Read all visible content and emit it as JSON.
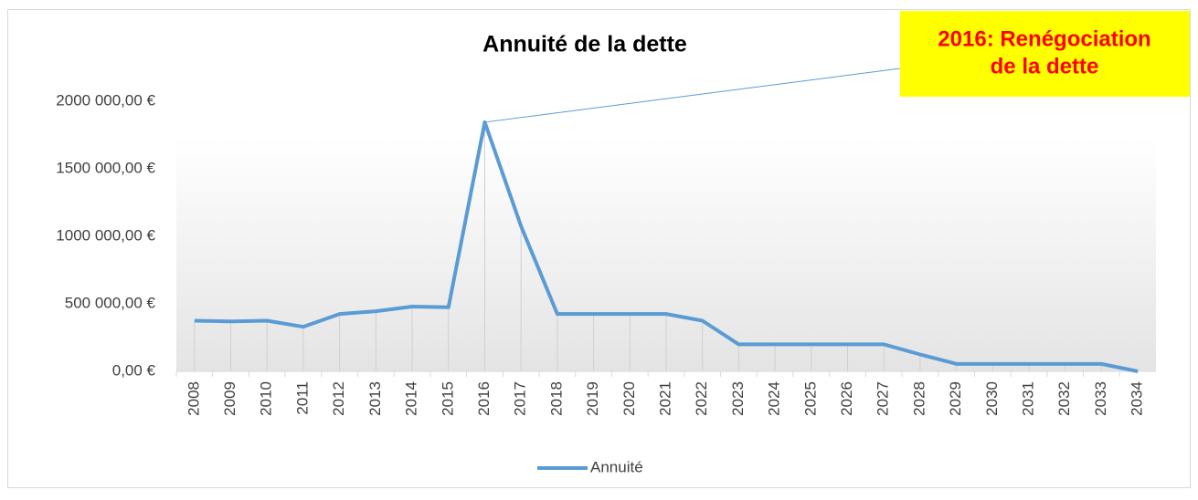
{
  "chart_data": {
    "type": "line",
    "title": "Annuité de la dette",
    "categories": [
      "2008",
      "2009",
      "2010",
      "2011",
      "2012",
      "2013",
      "2014",
      "2015",
      "2016",
      "2017",
      "2018",
      "2019",
      "2020",
      "2021",
      "2022",
      "2023",
      "2024",
      "2025",
      "2026",
      "2027",
      "2028",
      "2029",
      "2030",
      "2031",
      "2032",
      "2033",
      "2034"
    ],
    "series": [
      {
        "name": "Annuité",
        "color": "#5b9bd5",
        "values": [
          375000,
          370000,
          375000,
          330000,
          425000,
          445000,
          480000,
          475000,
          1845000,
          1075000,
          425000,
          425000,
          425000,
          425000,
          375000,
          200000,
          200000,
          200000,
          200000,
          200000,
          125000,
          55000,
          55000,
          55000,
          55000,
          55000,
          0
        ]
      }
    ],
    "ylim": [
      0,
      2000000
    ],
    "yticks": [
      {
        "value": 0,
        "label": "0,00 €"
      },
      {
        "value": 500000,
        "label": "500 000,00 €"
      },
      {
        "value": 1000000,
        "label": "1000 000,00 €"
      },
      {
        "value": 1500000,
        "label": "1500 000,00 €"
      },
      {
        "value": 2000000,
        "label": "2000 000,00 €"
      }
    ],
    "annotation": {
      "category": 8,
      "lines": [
        "2016: Renégociation",
        "de la dette"
      ]
    },
    "legend": "bottom",
    "drop_lines": true
  }
}
